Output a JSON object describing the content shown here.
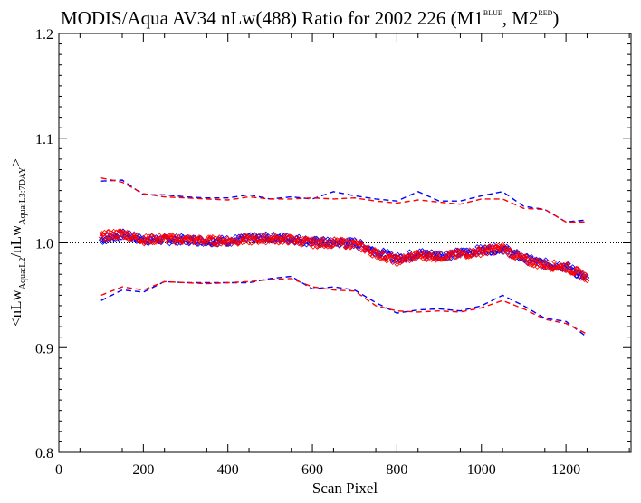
{
  "chart_data": {
    "type": "scatter",
    "title": {
      "main": "MODIS/Aqua AV34 nLw(488) Ratio for 2002 226 (M1",
      "sup1": "BLUE",
      "mid": ", M2",
      "sup2": "RED",
      "end": ")"
    },
    "xlabel": "Scan Pixel",
    "ylabel": {
      "part1": "<nLw",
      "sub1": "Aqua:L2",
      "part2": "/nLw",
      "sub2": "Aqua:L3:7DAY",
      "part3": ">"
    },
    "xlim": [
      0,
      1354
    ],
    "ylim": [
      0.8,
      1.2
    ],
    "x_ticks": [
      0,
      200,
      400,
      600,
      800,
      1000,
      1200
    ],
    "y_ticks": [
      0.8,
      0.9,
      1.0,
      1.1,
      1.2
    ],
    "x_tick_labels": [
      "0",
      "200",
      "400",
      "600",
      "800",
      "1000",
      "1200"
    ],
    "y_tick_labels": [
      "0.8",
      "0.9",
      "1.0",
      "1.1",
      "1.2"
    ],
    "reference_line": 1.0,
    "grid": false,
    "legend": "none",
    "series": [
      {
        "color": "#0000ff",
        "marker": "diamond",
        "x": [
          100,
          150,
          200,
          250,
          300,
          350,
          400,
          450,
          500,
          550,
          600,
          650,
          700,
          750,
          800,
          850,
          900,
          950,
          1000,
          1050,
          1100,
          1150,
          1200,
          1250
        ],
        "mean": [
          1.003,
          1.008,
          1.003,
          1.003,
          1.003,
          1.002,
          1.002,
          1.004,
          1.005,
          1.004,
          1.001,
          1.0,
          1.0,
          0.992,
          0.985,
          0.99,
          0.988,
          0.99,
          0.993,
          0.995,
          0.985,
          0.98,
          0.978,
          0.965
        ],
        "upper": [
          1.059,
          1.06,
          1.046,
          1.046,
          1.044,
          1.043,
          1.043,
          1.046,
          1.042,
          1.044,
          1.042,
          1.049,
          1.045,
          1.042,
          1.04,
          1.049,
          1.04,
          1.04,
          1.045,
          1.049,
          1.035,
          1.032,
          1.02,
          1.022
        ],
        "lower": [
          0.945,
          0.955,
          0.953,
          0.963,
          0.962,
          0.962,
          0.962,
          0.962,
          0.966,
          0.968,
          0.956,
          0.958,
          0.955,
          0.943,
          0.933,
          0.936,
          0.937,
          0.935,
          0.94,
          0.95,
          0.94,
          0.928,
          0.925,
          0.91
        ]
      },
      {
        "color": "#ff0000",
        "marker": "diamond",
        "x": [
          100,
          150,
          200,
          250,
          300,
          350,
          400,
          450,
          500,
          550,
          600,
          650,
          700,
          750,
          800,
          850,
          900,
          950,
          1000,
          1050,
          1100,
          1150,
          1200,
          1250
        ],
        "mean": [
          1.006,
          1.009,
          1.003,
          1.004,
          1.003,
          1.002,
          1.002,
          1.003,
          1.004,
          1.003,
          1.0,
          1.0,
          0.999,
          0.99,
          0.983,
          0.988,
          0.987,
          0.989,
          0.992,
          0.995,
          0.984,
          0.979,
          0.977,
          0.967
        ],
        "upper": [
          1.062,
          1.058,
          1.047,
          1.044,
          1.043,
          1.042,
          1.041,
          1.044,
          1.042,
          1.042,
          1.043,
          1.042,
          1.043,
          1.04,
          1.038,
          1.041,
          1.039,
          1.037,
          1.042,
          1.042,
          1.033,
          1.032,
          1.02,
          1.02
        ],
        "lower": [
          0.95,
          0.958,
          0.955,
          0.963,
          0.962,
          0.961,
          0.962,
          0.963,
          0.965,
          0.966,
          0.958,
          0.955,
          0.954,
          0.94,
          0.935,
          0.934,
          0.935,
          0.934,
          0.938,
          0.945,
          0.937,
          0.927,
          0.923,
          0.913
        ]
      }
    ]
  }
}
